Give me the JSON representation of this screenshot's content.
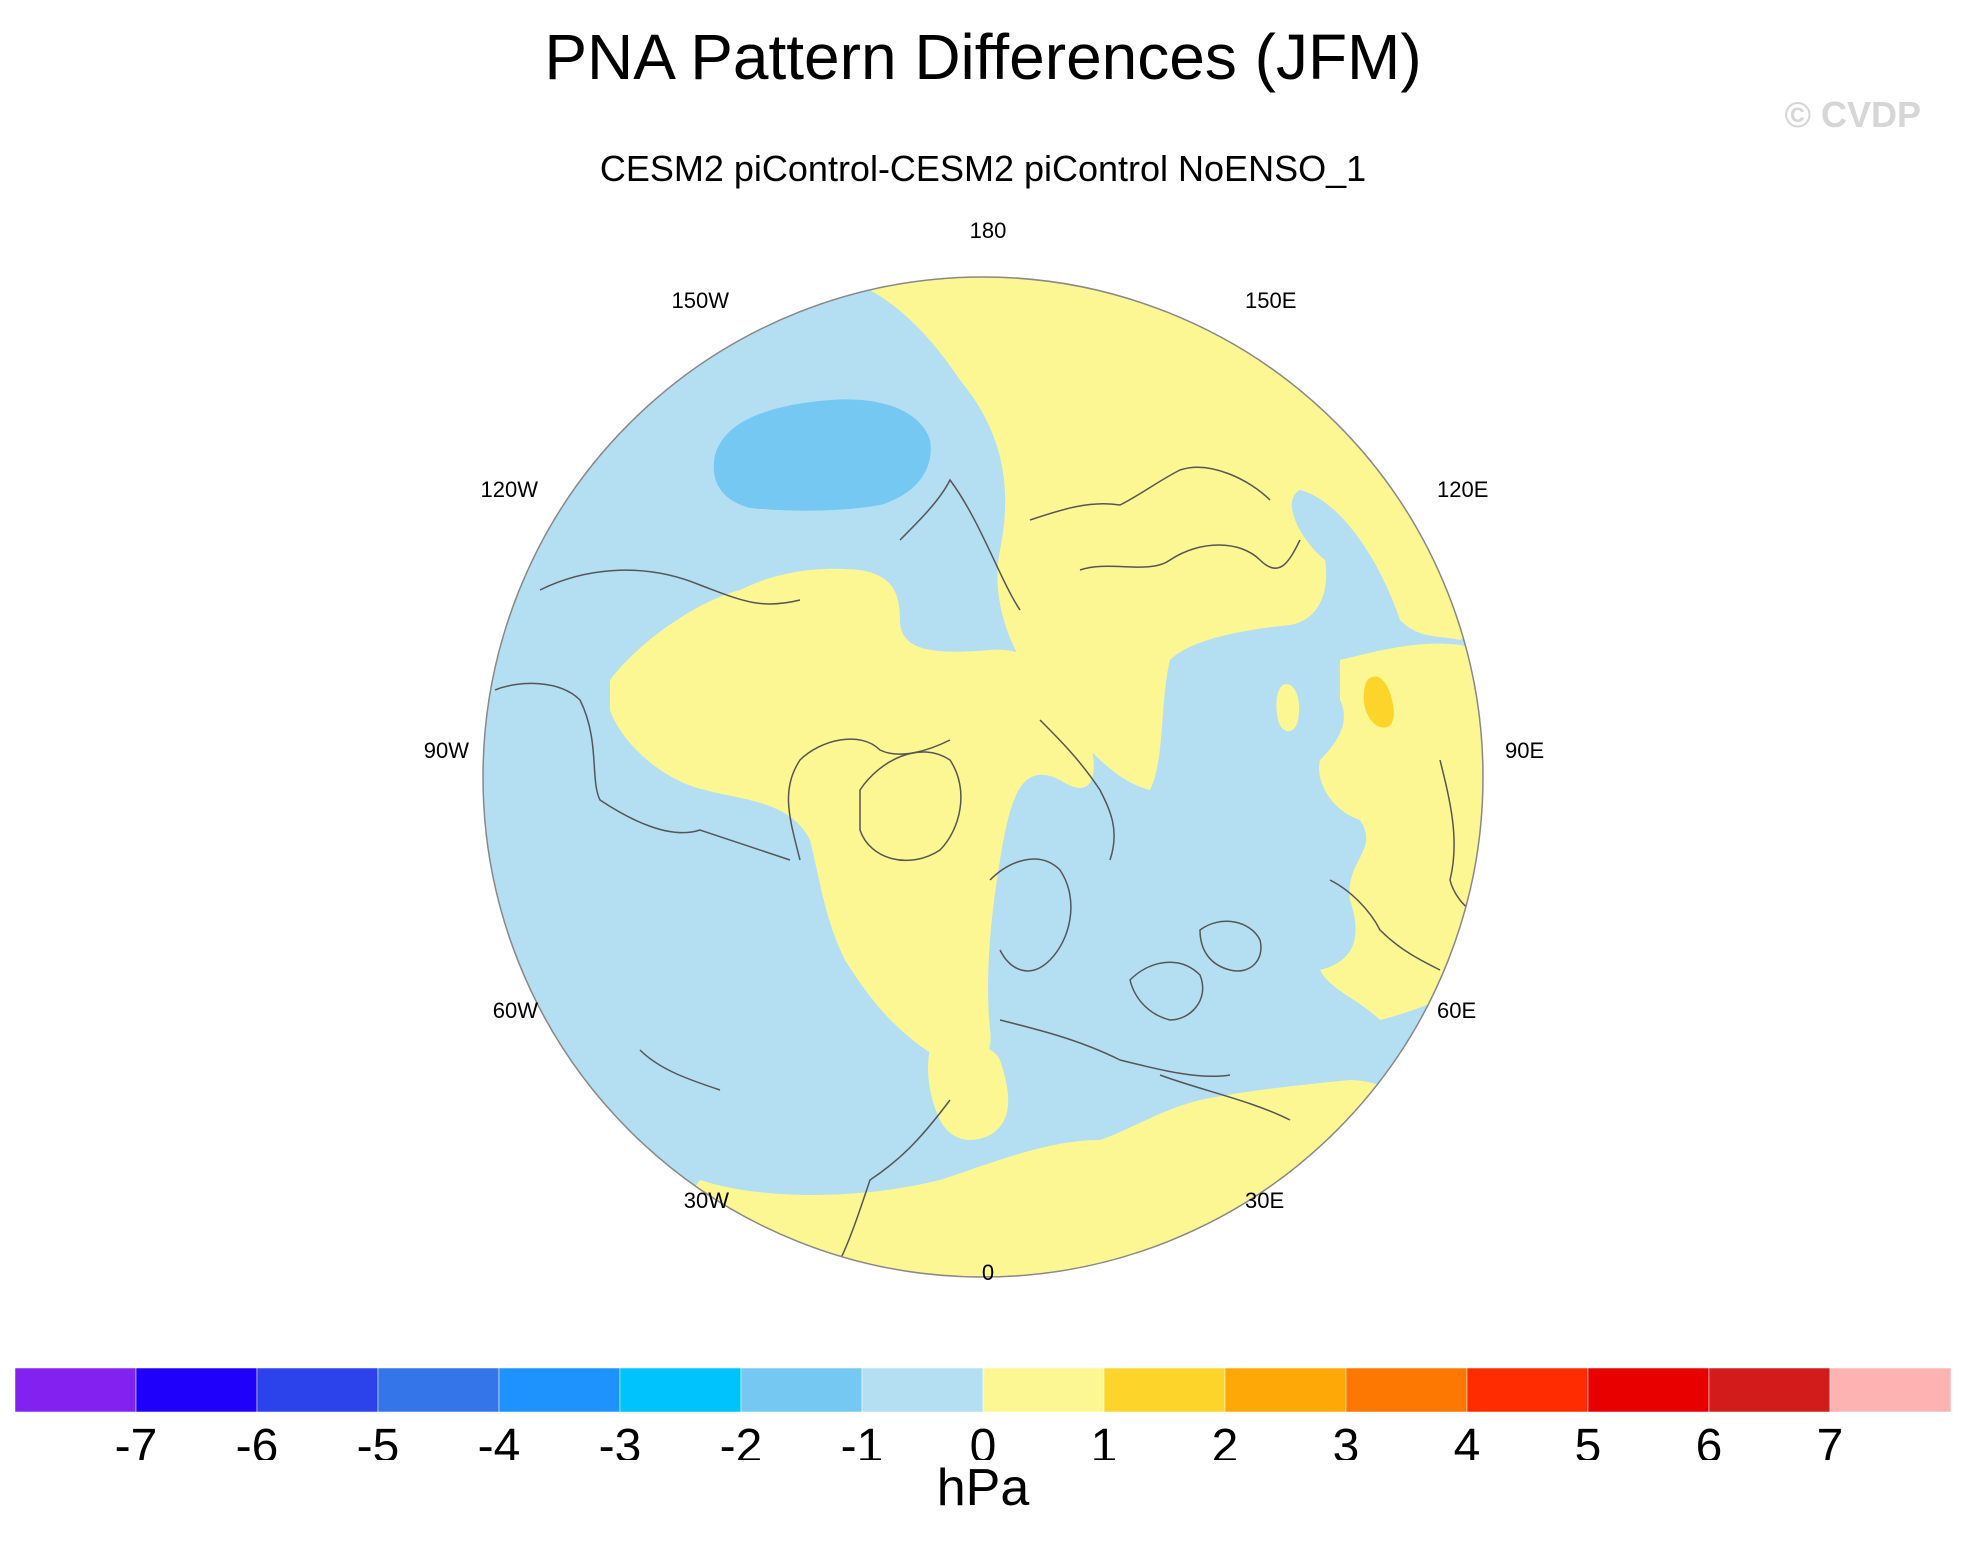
{
  "title": "PNA Pattern Differences (JFM)",
  "subtitle": "CESM2 piControl-CESM2 piControl NoENSO_1",
  "watermark": "© CVDP",
  "longitude_labels": [
    "180",
    "150E",
    "120E",
    "90E",
    "60E",
    "30E",
    "0",
    "30W",
    "60W",
    "90W",
    "120W",
    "150W"
  ],
  "colorbar": {
    "colors": [
      "#8122f0",
      "#1f01fb",
      "#2c42eb",
      "#3475e9",
      "#1f93fd",
      "#00c3fd",
      "#74c8f2",
      "#b4dff3",
      "#fdf793",
      "#fdd42a",
      "#fda806",
      "#fd7703",
      "#fe2c00",
      "#e80000",
      "#d11c1b",
      "#feb3b3"
    ],
    "tick_labels": [
      "-7",
      "-6",
      "-5",
      "-4",
      "-3",
      "-2",
      "-1",
      "0",
      "1",
      "2",
      "3",
      "4",
      "5",
      "6",
      "7"
    ],
    "units": "hPa"
  },
  "map": {
    "projection": "polar stereographic, North Pole",
    "negative_fill": "#b4dff3",
    "positive_fill": "#fdf793",
    "strong_negative_fill": "#74c8f2",
    "strong_positive_fill": "#fdd42a",
    "coast_color": "#555555"
  }
}
